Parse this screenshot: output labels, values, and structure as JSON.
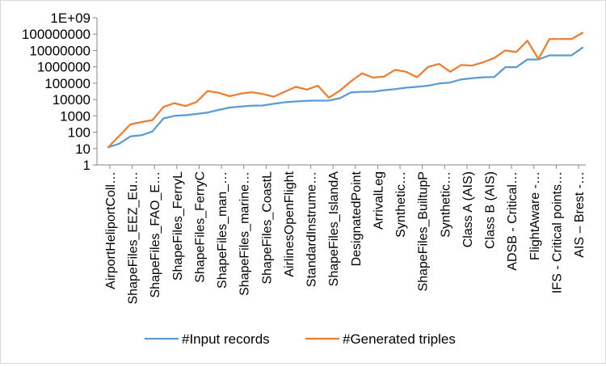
{
  "chart_data": {
    "type": "line",
    "title": "",
    "xlabel": "",
    "ylabel": "",
    "y_scale": "log",
    "ylim": [
      1,
      1000000000
    ],
    "y_ticks": [
      "1",
      "10",
      "100",
      "1000",
      "10000",
      "100000",
      "1000000",
      "10000000",
      "100000000",
      "1E+09"
    ],
    "grid": false,
    "legend_position": "bottom",
    "x_tick_labels": [
      "AirportHeliportColl…",
      "ShapeFiles_EEZ_Eu…",
      "ShapeFiles_FAO_E…",
      "ShapeFiles_FerryL",
      "ShapeFiles_FerryC",
      "ShapeFiles_man_…",
      "ShapeFiles_marine…",
      "ShapeFiles_CoastL",
      "AirlinesOpenFlight",
      "StandardInstrume…",
      "ShapeFiles_IslandA",
      "DesignatedPoint",
      "ArrivalLeg",
      "Synthetic…",
      "ShapeFiles_BuiltupP",
      "Synthetic…",
      "Class A (AIS)",
      "Class B (AIS)",
      "ADSB - Critical…",
      "FlightAware -…",
      "IFS - Critical points…",
      "AIS – Brest -…"
    ],
    "series": [
      {
        "name": "#Input records",
        "color": "#5b9bd5",
        "values": [
          12,
          20,
          55,
          65,
          110,
          700,
          1000,
          1100,
          1300,
          1600,
          2300,
          3200,
          3700,
          4200,
          4300,
          5500,
          6800,
          7600,
          8300,
          8500,
          8600,
          12000,
          27000,
          30000,
          30000,
          37000,
          43000,
          53000,
          60000,
          70000,
          95000,
          110000,
          170000,
          200000,
          230000,
          240000,
          950000,
          950000,
          2800000,
          2800000,
          5000000,
          5000000,
          5000000,
          15000000
        ]
      },
      {
        "name": "#Generated triples",
        "color": "#ed7d31",
        "values": [
          12,
          60,
          300,
          420,
          550,
          3500,
          6000,
          4000,
          7000,
          33000,
          26000,
          16000,
          23000,
          28000,
          22000,
          15000,
          30000,
          60000,
          40000,
          70000,
          13000,
          35000,
          130000,
          400000,
          220000,
          250000,
          650000,
          500000,
          230000,
          1000000,
          1500000,
          500000,
          1300000,
          1200000,
          1900000,
          3500000,
          10000000,
          8000000,
          40000000,
          3000000,
          50000000,
          50000000,
          50000000,
          120000000
        ]
      }
    ]
  }
}
